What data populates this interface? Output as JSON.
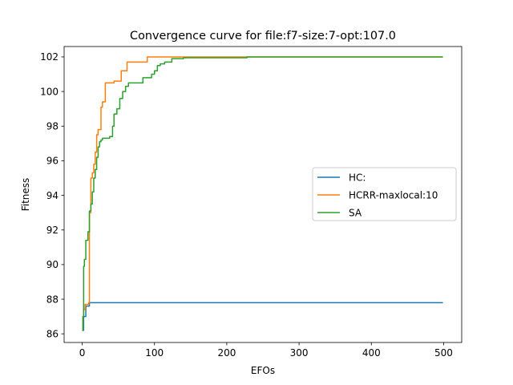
{
  "chart_data": {
    "type": "line",
    "title": "Convergence curve for file:f7-size:7-opt:107.0",
    "xlabel": "EFOs",
    "ylabel": "Fitness",
    "xlim": [
      -25,
      525
    ],
    "ylim": [
      85.5,
      102.6
    ],
    "xticks": [
      0,
      100,
      200,
      300,
      400,
      500
    ],
    "yticks": [
      86,
      88,
      90,
      92,
      94,
      96,
      98,
      100,
      102
    ],
    "grid": false,
    "legend_position": "center-right",
    "series": [
      {
        "name": "HC:",
        "color": "#1f77b4",
        "step": true,
        "x": [
          0,
          2,
          5,
          10,
          499
        ],
        "y": [
          86.2,
          87.0,
          87.6,
          87.8,
          87.8
        ]
      },
      {
        "name": "HCRR-maxlocal:10",
        "color": "#ff7f0e",
        "step": true,
        "x": [
          0,
          1,
          2,
          4,
          9,
          10,
          12,
          14,
          16,
          18,
          20,
          22,
          26,
          28,
          32,
          36,
          44,
          54,
          56,
          62,
          90,
          499
        ],
        "y": [
          86.2,
          87.0,
          87.4,
          87.7,
          87.8,
          93.0,
          95.0,
          95.3,
          95.8,
          96.5,
          97.5,
          97.8,
          99.1,
          99.4,
          100.5,
          100.5,
          100.6,
          101.2,
          101.2,
          101.7,
          102.0,
          102.0
        ]
      },
      {
        "name": "SA",
        "color": "#2ca02c",
        "step": true,
        "x": [
          0,
          1,
          2,
          3,
          5,
          8,
          10,
          12,
          14,
          16,
          18,
          20,
          22,
          24,
          26,
          28,
          34,
          38,
          42,
          44,
          48,
          52,
          56,
          60,
          64,
          70,
          84,
          96,
          100,
          104,
          108,
          114,
          124,
          140,
          200,
          228,
          499
        ],
        "y": [
          86.2,
          87.0,
          89.9,
          90.3,
          91.4,
          91.9,
          93.1,
          93.5,
          94.2,
          95.0,
          95.5,
          96.2,
          96.8,
          97.1,
          97.2,
          97.3,
          97.3,
          97.4,
          98.0,
          98.7,
          99.0,
          99.6,
          100.0,
          100.3,
          100.5,
          100.5,
          100.8,
          101.0,
          101.2,
          101.5,
          101.6,
          101.7,
          101.9,
          101.95,
          101.95,
          102.0,
          102.0
        ]
      }
    ]
  }
}
